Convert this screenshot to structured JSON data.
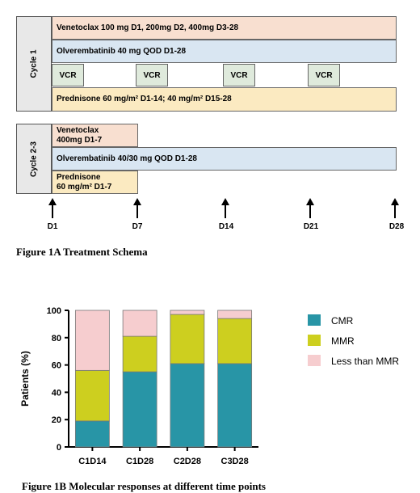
{
  "schema": {
    "cycle1_label": "Cycle 1",
    "cycle23_label": "Cycle 2-3",
    "c1_venetoclax": "Venetoclax 100 mg D1, 200mg D2, 400mg D3-28",
    "c1_olverembatinib": "Olverembatinib 40 mg QOD D1-28",
    "vcr_label": "VCR",
    "c1_prednisone": "Prednisone 60 mg/m² D1-14; 40 mg/m² D15-28",
    "c23_venetoclax_line1": "Venetoclax",
    "c23_venetoclax_line2": "400mg D1-7",
    "c23_olverembatinib": "Olverembatinib 40/30 mg QOD D1-28",
    "c23_prednisone_line1": "Prednisone",
    "c23_prednisone_line2": "60 mg/m² D1-7",
    "days": [
      "D1",
      "D7",
      "D14",
      "D21",
      "D28"
    ],
    "caption": "Figure 1A Treatment Schema",
    "colors": {
      "venetoclax": "#f8dfd0",
      "olverembatinib": "#d9e6f2",
      "vcr": "#dfeadc",
      "prednisone": "#fbeac1"
    }
  },
  "chart_data": {
    "type": "bar",
    "stacked": true,
    "categories": [
      "C1D14",
      "C1D28",
      "C2D28",
      "C3D28"
    ],
    "series": [
      {
        "name": "CMR",
        "values": [
          19,
          55,
          61,
          61
        ],
        "color": "#2895a6"
      },
      {
        "name": "MMR",
        "values": [
          37,
          26,
          36,
          33
        ],
        "color": "#cdcf1f"
      },
      {
        "name": "Less than MMR",
        "values": [
          44,
          19,
          3,
          6
        ],
        "color": "#f6cdcf"
      }
    ],
    "ylabel": "Patients (%)",
    "ylim": [
      0,
      100
    ],
    "yticks": [
      0,
      20,
      40,
      60,
      80,
      100
    ],
    "legend_position": "right",
    "grid": false,
    "caption": "Figure 1B Molecular responses at different time points"
  }
}
